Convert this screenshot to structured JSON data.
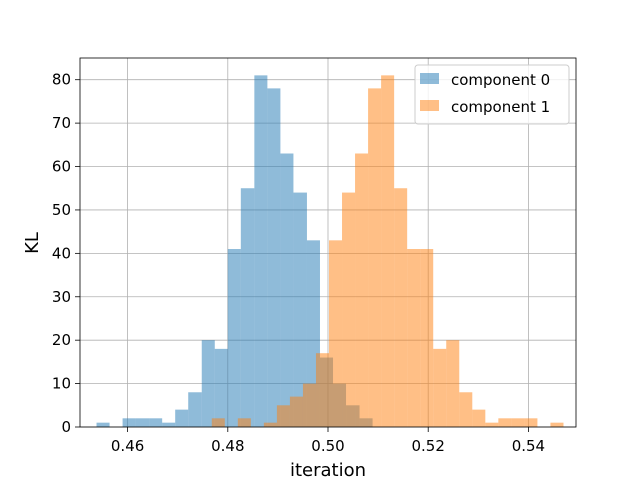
{
  "chart_data": {
    "type": "bar",
    "title": "",
    "xlabel": "iteration",
    "ylabel": "KL",
    "xlim": [
      0.4505,
      0.5495
    ],
    "ylim": [
      0,
      85
    ],
    "xticks": [
      0.46,
      0.48,
      0.5,
      0.52,
      0.54
    ],
    "xtick_labels": [
      "0.46",
      "0.48",
      "0.50",
      "0.52",
      "0.54"
    ],
    "yticks": [
      0,
      10,
      20,
      30,
      40,
      50,
      60,
      70,
      80
    ],
    "ytick_labels": [
      "0",
      "10",
      "20",
      "30",
      "40",
      "50",
      "60",
      "70",
      "80"
    ],
    "grid": true,
    "legend_position": "top-right",
    "series": [
      {
        "name": "component 0",
        "color": "#1f77b4",
        "opacity": 0.5,
        "bins": [
          [
            0.4538,
            0.4564,
            1
          ],
          [
            0.459,
            0.4616,
            2
          ],
          [
            0.4616,
            0.4643,
            2
          ],
          [
            0.4643,
            0.4669,
            2
          ],
          [
            0.4669,
            0.4695,
            1
          ],
          [
            0.4695,
            0.4721,
            4
          ],
          [
            0.4721,
            0.4748,
            8
          ],
          [
            0.4748,
            0.4774,
            20
          ],
          [
            0.4774,
            0.48,
            18
          ],
          [
            0.48,
            0.4826,
            41
          ],
          [
            0.4826,
            0.4853,
            55
          ],
          [
            0.4853,
            0.4879,
            81
          ],
          [
            0.4879,
            0.4905,
            78
          ],
          [
            0.4905,
            0.4931,
            63
          ],
          [
            0.4931,
            0.4958,
            54
          ],
          [
            0.4958,
            0.4984,
            43
          ],
          [
            0.4984,
            0.501,
            16
          ],
          [
            0.501,
            0.5036,
            10
          ],
          [
            0.5036,
            0.5063,
            5
          ],
          [
            0.5063,
            0.5089,
            2
          ]
        ]
      },
      {
        "name": "component 1",
        "color": "#ff7f0e",
        "opacity": 0.5,
        "bins": [
          [
            0.4768,
            0.4794,
            2
          ],
          [
            0.482,
            0.4846,
            2
          ],
          [
            0.4872,
            0.4898,
            1
          ],
          [
            0.4898,
            0.4924,
            5
          ],
          [
            0.4924,
            0.495,
            7
          ],
          [
            0.495,
            0.4976,
            10
          ],
          [
            0.4976,
            0.5002,
            17
          ],
          [
            0.5002,
            0.5028,
            43
          ],
          [
            0.5028,
            0.5054,
            54
          ],
          [
            0.5054,
            0.508,
            63
          ],
          [
            0.508,
            0.5106,
            78
          ],
          [
            0.5106,
            0.5132,
            81
          ],
          [
            0.5132,
            0.5158,
            55
          ],
          [
            0.5158,
            0.5184,
            41
          ],
          [
            0.5184,
            0.521,
            41
          ],
          [
            0.521,
            0.5236,
            18
          ],
          [
            0.5236,
            0.5262,
            20
          ],
          [
            0.5262,
            0.5288,
            8
          ],
          [
            0.5288,
            0.5314,
            4
          ],
          [
            0.5314,
            0.534,
            1
          ],
          [
            0.534,
            0.5366,
            2
          ],
          [
            0.5366,
            0.5392,
            2
          ],
          [
            0.5392,
            0.5418,
            2
          ],
          [
            0.5444,
            0.547,
            1
          ]
        ]
      }
    ]
  }
}
